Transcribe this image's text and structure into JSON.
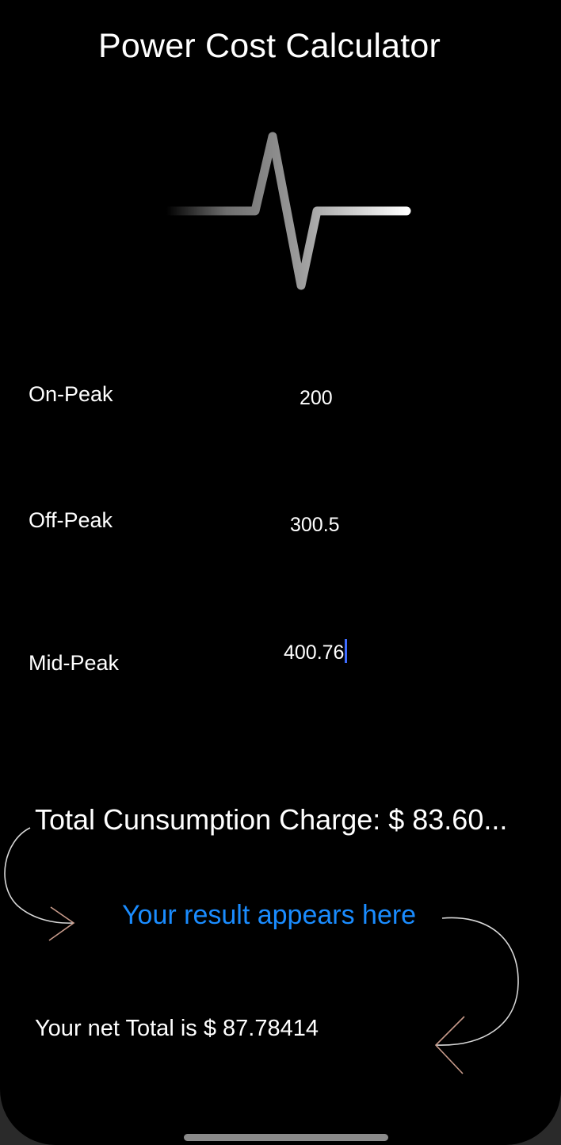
{
  "app": {
    "title": "Power Cost Calculator",
    "logo_icon": "pulse-waveform-icon"
  },
  "inputs": {
    "on_peak": {
      "label": "On-Peak",
      "value": "200"
    },
    "off_peak": {
      "label": "Off-Peak",
      "value": "300.5"
    },
    "mid_peak": {
      "label": "Mid-Peak",
      "value": "400.76"
    }
  },
  "results": {
    "total_charge": "Total Cunsumption Charge: $  83.60...",
    "hint": "Your result appears here",
    "net_total": "Your net Total is $ 87.78414"
  },
  "colors": {
    "background": "#000000",
    "text": "#ffffff",
    "accent": "#1a8cff",
    "caret": "#3d6bff"
  }
}
